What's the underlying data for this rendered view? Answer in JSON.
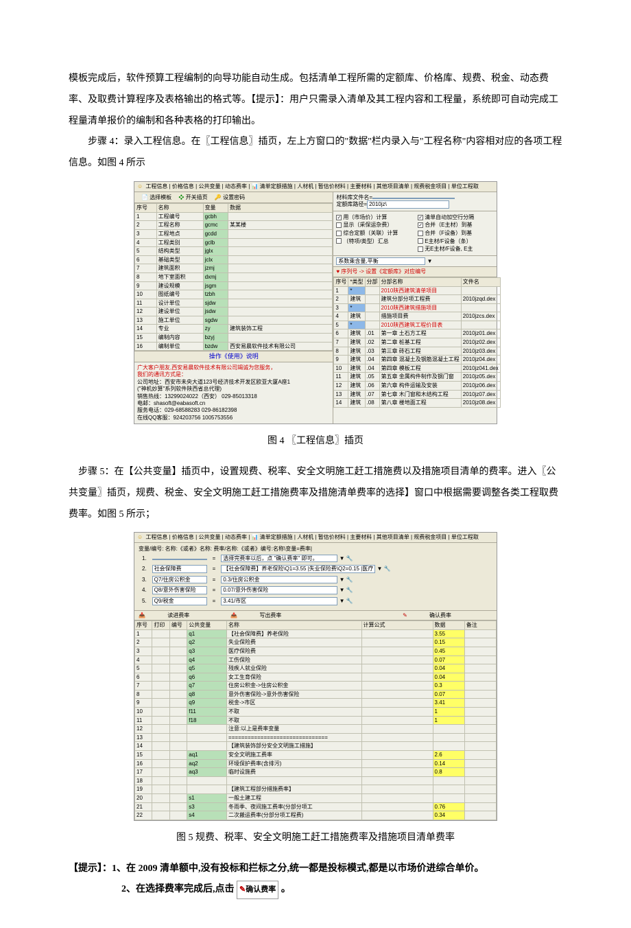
{
  "doc": {
    "p1": "模板完成后，软件预算工程编制的向导功能自动生成。包括清单工程所需的定额库、价格库、规费、税金、动态费率、及取费计算程序及表格输出的格式等。【提示】：用户只需录入清单及其工程内容和工程量，系统即可自动完成工程量清单报价的编制和各种表格的打印输出。",
    "p2": "步骤 4：录入工程信息。在〖工程信息〗插页，左上方窗口的\"数据\"栏内录入与\"工程名称\"内容相对应的各项工程信息。如图 4 所示",
    "cap4": "图 4   〖工程信息〗插页",
    "p3": "步骤 5：在【公共变量】插页中，设置规费、税率、安全文明施工赶工措施费以及措施项目清单的费率。进入〖公共变量〗插页，规费、税金、安全文明施工赶工措施费率及措施清单费率的选择】窗口中根据需要调整各类工程取费费率。如图 5 所示；",
    "cap5": "图 5   规费、税率、安全文明施工赶工措施费率及措施项目清单费率",
    "tip_label": "【提示】：",
    "tip1": "1、在 2009 清单额中,没有投标和拦标之分,统一都是投标模式,都是以市场价进综合单价。",
    "tip2_a": "2、在选择费率完成后,点击 ",
    "tip2_b": " 。",
    "confirm_btn": "确认费率"
  },
  "shot1": {
    "tabs": "工程信息 | 价格信息 | 公共变量 | 动态费率 | 📊 清单定额措施 | 人材机 | 暂估价材料 | 主要材料 | 其他项目清单 | 规费税金项目 | 单位工程取",
    "toolbar": {
      "select": "选择模板",
      "open": "开关插页",
      "pwd": "设置密码"
    },
    "left_headers": [
      "序号",
      "名称",
      "变量",
      "数据"
    ],
    "left_rows": [
      [
        "1",
        "工程编号",
        "gcbh",
        ""
      ],
      [
        "2",
        "工程名称",
        "gcmc",
        "某某楼"
      ],
      [
        "3",
        "工程地点",
        "gcdd",
        ""
      ],
      [
        "4",
        "工程类别",
        "gclb",
        ""
      ],
      [
        "5",
        "结构类型",
        "jglx",
        ""
      ],
      [
        "6",
        "基础类型",
        "jclx",
        ""
      ],
      [
        "7",
        "建筑面积",
        "jzmj",
        ""
      ],
      [
        "8",
        "地下室面积",
        "dxmj",
        ""
      ],
      [
        "9",
        "建设规模",
        "jsgm",
        ""
      ],
      [
        "10",
        "图纸编号",
        "tzbh",
        ""
      ],
      [
        "11",
        "设计单位",
        "sjdw",
        ""
      ],
      [
        "12",
        "建设单位",
        "jsdw",
        ""
      ],
      [
        "13",
        "施工单位",
        "sgdw",
        ""
      ],
      [
        "14",
        "专业",
        "zy",
        "建筑装饰工程"
      ],
      [
        "15",
        "编制内容",
        "bzyj",
        ""
      ],
      [
        "16",
        "编制单位",
        "bzdw",
        "西安易晨软件技术有限公司"
      ]
    ],
    "op_help": "操作《使用》说明",
    "footer": [
      "广大客户朋友,西安易晨软件技术有限公司竭诚为您服务，",
      "我们的通讯方式是：",
      "公司地址：西安市未央大道123号经济技术开发区欧亚大厦A座1",
      "    (\"神机妙算\"系列软件陕西省总代理)",
      "销售热线：13299024022（西安）   029-85013318",
      "电邮：shasoft@eabasoft.cn",
      "服务电话：029-68588283    029-86182398",
      "在线QQ客服：924203756    1005753556"
    ],
    "right_top": {
      "lib_label": "材料库文件名=",
      "path_label": "定额库路径=",
      "path": "2010jz\\"
    },
    "checks_left": [
      "用（市场价）计算",
      "显示（采保运杂费）",
      "综合定额（关联）计算",
      "（特项/类型）汇总"
    ],
    "checks_right": [
      "清单自动加空行分隔",
      "合并（E主材）到基",
      "合并（F设备）到基",
      "E主材/F设备（条）",
      "无E主材/F设备, E主"
    ],
    "combo": "系数乘含量,平衡",
    "heart_header": "序列号 -> 设置《定额库》对应编号",
    "r_headers": [
      "序号",
      "*类型",
      "分部",
      "分部名称",
      "文件名"
    ],
    "r_rows": [
      [
        "1",
        "*",
        "",
        "2010陕西建筑清单项目",
        "",
        "red"
      ],
      [
        "2",
        "建筑",
        "",
        "建筑分部分项工程费",
        "2010jzqd.dex",
        ""
      ],
      [
        "3",
        "*",
        "",
        "2010陕西建筑措施项目",
        "",
        "red"
      ],
      [
        "4",
        "建筑",
        "",
        "措施项目费",
        "2010jzcs.dex",
        ""
      ],
      [
        "5",
        "*",
        "",
        "2010陕西建筑工程价目表",
        "",
        "red"
      ],
      [
        "6",
        "建筑",
        ".01",
        "第一章 土石方工程",
        "2010jz01.dex",
        ""
      ],
      [
        "7",
        "建筑",
        ".02",
        "第二章 桩基工程",
        "2010jz02.dex",
        ""
      ],
      [
        "8",
        "建筑",
        ".03",
        "第三章 砖石工程",
        "2010jz03.dex",
        ""
      ],
      [
        "9",
        "建筑",
        ".04",
        "第四章 混凝土及钢筋混凝土工程",
        "2010jz04.dex",
        ""
      ],
      [
        "10",
        "建筑",
        ".04",
        "第四章 模板工程",
        "2010jz041.dex",
        ""
      ],
      [
        "11",
        "建筑",
        ".05",
        "第五章 金属构件制作及钢门窗",
        "2010jz05.dex",
        ""
      ],
      [
        "12",
        "建筑",
        ".06",
        "第六章 构件运输及安装",
        "2010jz06.dex",
        ""
      ],
      [
        "13",
        "建筑",
        ".07",
        "第七章 木门窗和木结构工程",
        "2010jz07.dex",
        ""
      ],
      [
        "14",
        "建筑",
        ".08",
        "第八章 楼地面工程",
        "2010jz08.dex",
        ""
      ]
    ]
  },
  "shot2": {
    "tabs": "工程信息 | 价格信息 | 公共变量 | 动态费率 | 📊 清单定额措施 | 人材机 | 暂估价材料 | 主要材料 | 其他项目清单 | 规费税金项目 | 单位工程取",
    "top_header": "变量/编号: 名称:《或者》名称:     费率/名称:《或者》编号:名称\\变量=费率|",
    "top_rows": [
      [
        "1.",
        "",
        "=",
        "选择完费率以后，点 \"确认费率\" 即可。"
      ],
      [
        "2.",
        "社会保障费",
        "=",
        "【社会保障费】养老保险\\Q1=3.55 |失业保险费\\Q2=0.15 |医疗"
      ],
      [
        "3.",
        "Q7/住房公积金",
        "=",
        "0.3/住房公积金"
      ],
      [
        "4.",
        "Q8/意外伤害保险",
        "=",
        "0.07/意外伤害保险"
      ],
      [
        "5.",
        "Q9/税金",
        "=",
        "3.41/市区"
      ]
    ],
    "btns": {
      "in": "读进费率",
      "out": "写出费率",
      "ok": "确认费率"
    },
    "headers": [
      "序号",
      "打印",
      "编号",
      "公共变量",
      "名称",
      "计算公式",
      "数据",
      "备注"
    ],
    "rows": [
      [
        "1",
        "",
        "",
        "q1",
        "【社会保障费】养老保险",
        "",
        "3.55",
        ""
      ],
      [
        "2",
        "",
        "",
        "q2",
        "失业保险费",
        "",
        "0.15",
        ""
      ],
      [
        "3",
        "",
        "",
        "q3",
        "医疗保险费",
        "",
        "0.45",
        ""
      ],
      [
        "4",
        "",
        "",
        "q4",
        "工伤保险",
        "",
        "0.07",
        ""
      ],
      [
        "5",
        "",
        "",
        "q5",
        "残疾人就业保险",
        "",
        "0.04",
        ""
      ],
      [
        "6",
        "",
        "",
        "q6",
        "女工生育保险",
        "",
        "0.04",
        ""
      ],
      [
        "7",
        "",
        "",
        "q7",
        "住房公积金->住房公积金",
        "",
        "0.3",
        ""
      ],
      [
        "8",
        "",
        "",
        "q8",
        "意外伤害保险->意外伤害保险",
        "",
        "0.07",
        ""
      ],
      [
        "9",
        "",
        "",
        "q9",
        "税金->市区",
        "",
        "3.41",
        ""
      ],
      [
        "10",
        "",
        "",
        "f11",
        "不取",
        "",
        "1",
        ""
      ],
      [
        "11",
        "",
        "",
        "f18",
        "不取",
        "",
        "1",
        ""
      ],
      [
        "12",
        "",
        "",
        "",
        "注意:以上是费率变量",
        "",
        "",
        ""
      ],
      [
        "13",
        "",
        "",
        "",
        "===============================",
        "",
        "",
        ""
      ],
      [
        "14",
        "",
        "",
        "",
        "【建筑装饰部分安全文明施工措施】",
        "",
        "",
        ""
      ],
      [
        "15",
        "",
        "",
        "aq1",
        "安全文明施工费率",
        "",
        "2.6",
        ""
      ],
      [
        "16",
        "",
        "",
        "aq2",
        "环境保护费率(含排污)",
        "",
        "0.14",
        ""
      ],
      [
        "17",
        "",
        "",
        "aq3",
        "临时设施费",
        "",
        "0.8",
        ""
      ],
      [
        "18",
        "",
        "",
        "",
        "",
        "",
        "",
        ""
      ],
      [
        "19",
        "",
        "",
        "",
        "【建筑工程部分措施费率】",
        "",
        "",
        ""
      ],
      [
        "20",
        "",
        "",
        "s1",
        "一般土建工程",
        "",
        "",
        ""
      ],
      [
        "21",
        "",
        "",
        "s3",
        "冬雨季、夜间施工费率(分部分项工",
        "",
        "0.76",
        ""
      ],
      [
        "22",
        "",
        "",
        "s4",
        "二次搬运费率(分部分项工程费)",
        "",
        "0.34",
        ""
      ]
    ],
    "yellow_rows": [
      1,
      2,
      3,
      4,
      5,
      6,
      7,
      8,
      9,
      10,
      11,
      15,
      16,
      17,
      21,
      22
    ]
  }
}
